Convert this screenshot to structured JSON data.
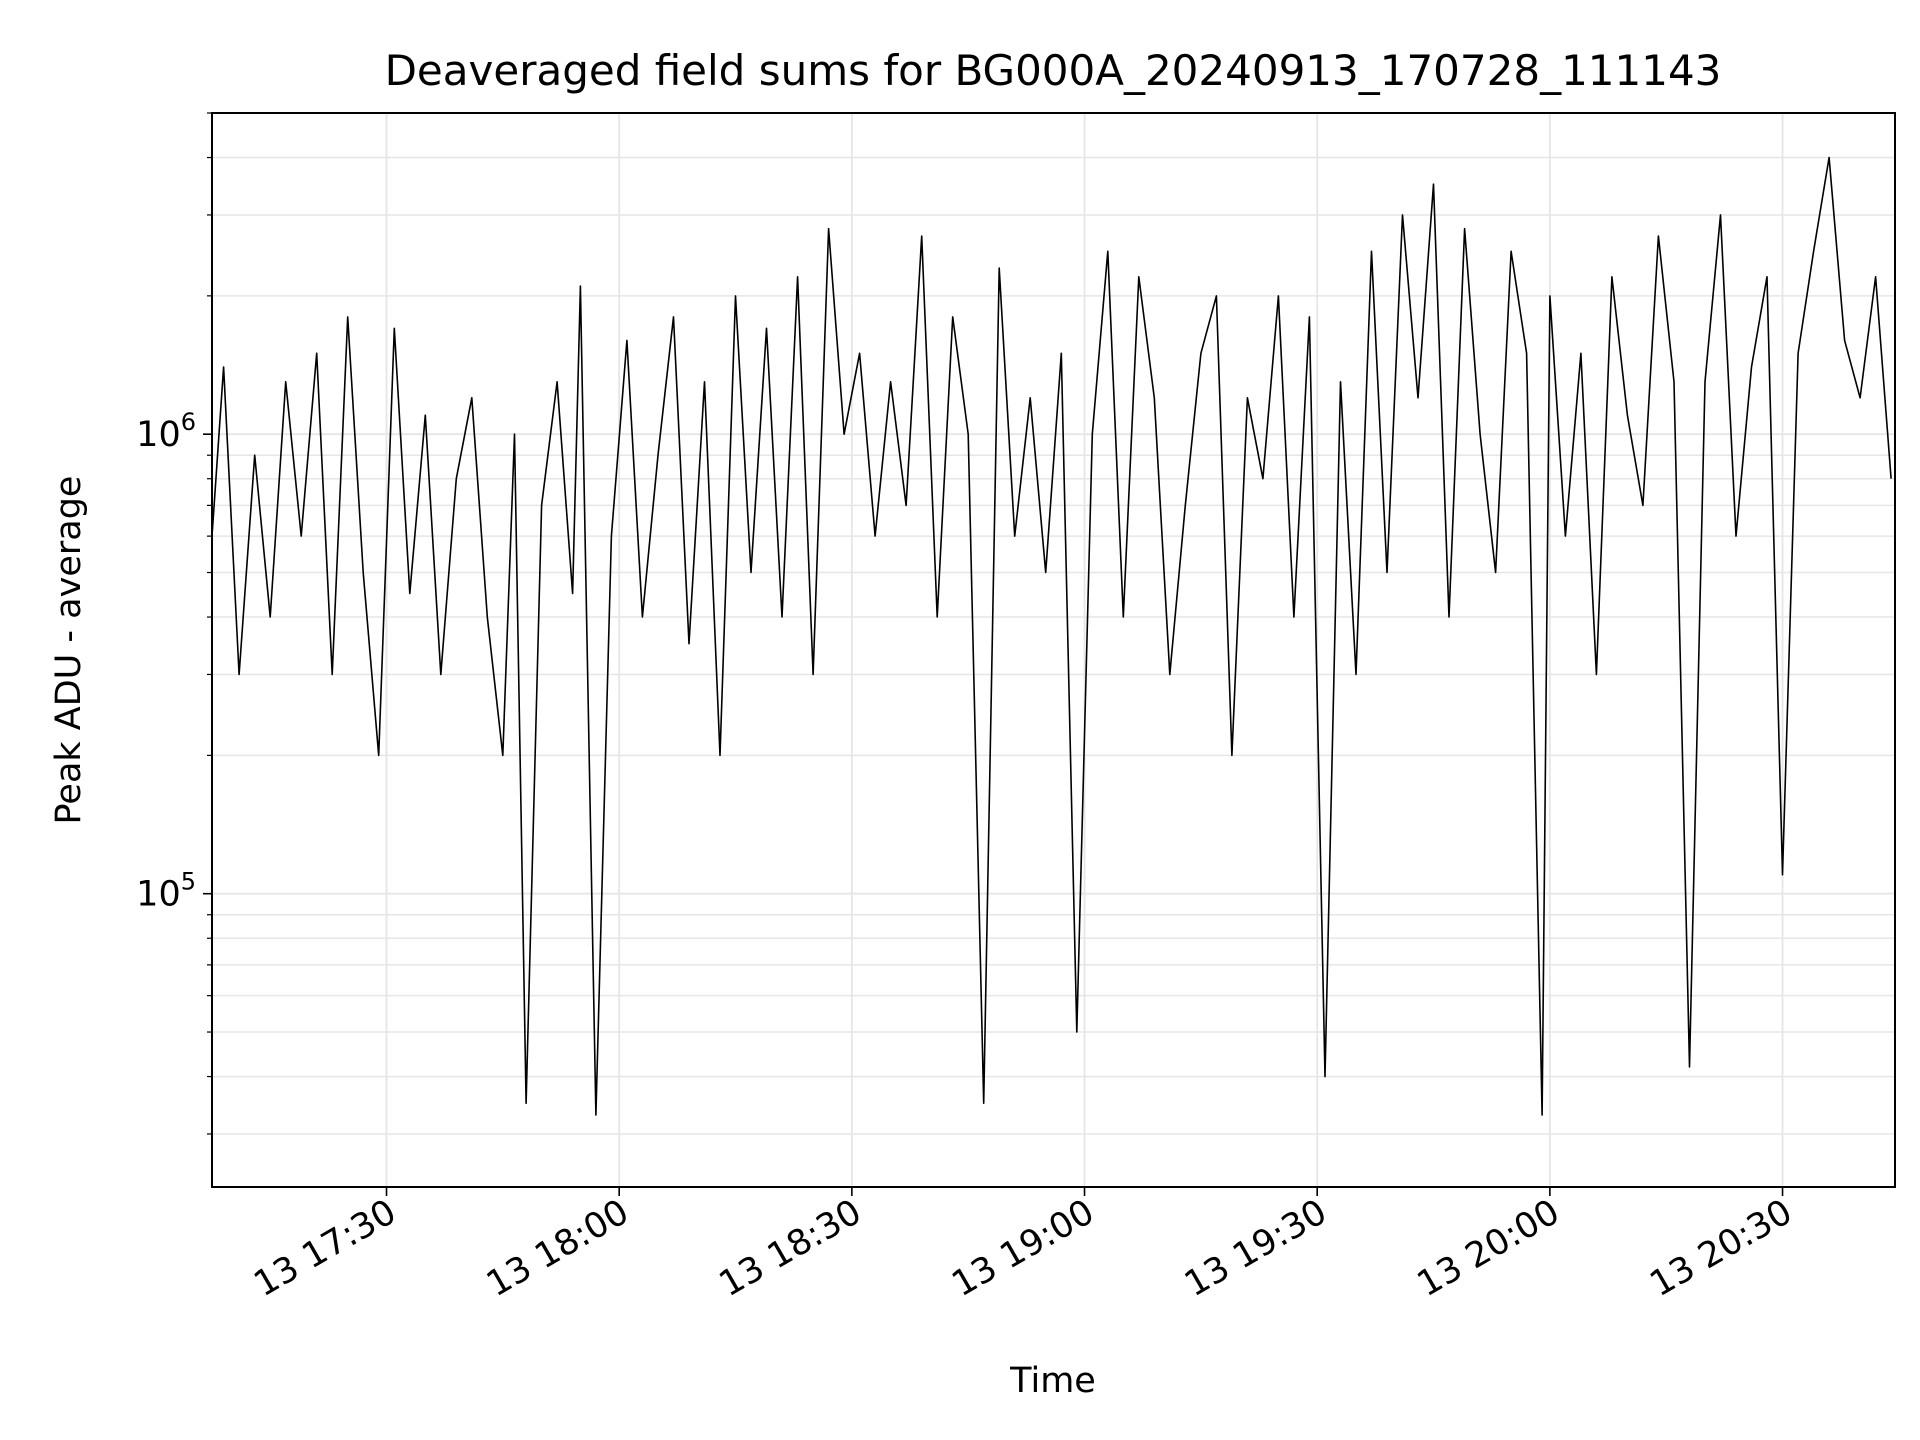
{
  "chart_data": {
    "type": "line",
    "title": "Deaveraged field sums for BG000A_20240913_170728_111143",
    "xlabel": "Time",
    "ylabel": "Peak ADU - average",
    "y_scale": "log",
    "ylim": [
      23000,
      5000000
    ],
    "xlim": [
      "2024-09-13 17:07:30",
      "2024-09-13 20:44:30"
    ],
    "grid": true,
    "legend": "none",
    "line_color": "#000000",
    "x_ticks": [
      {
        "time": "2024-09-13 17:30",
        "label": "13 17:30"
      },
      {
        "time": "2024-09-13 18:00",
        "label": "13 18:00"
      },
      {
        "time": "2024-09-13 18:30",
        "label": "13 18:30"
      },
      {
        "time": "2024-09-13 19:00",
        "label": "13 19:00"
      },
      {
        "time": "2024-09-13 19:30",
        "label": "13 19:30"
      },
      {
        "time": "2024-09-13 20:00",
        "label": "13 20:00"
      },
      {
        "time": "2024-09-13 20:30",
        "label": "13 20:30"
      }
    ],
    "y_ticks": [
      {
        "value": 100000,
        "base": "10",
        "exp": "5"
      },
      {
        "value": 1000000,
        "base": "10",
        "exp": "6"
      }
    ],
    "series": [
      {
        "x": [
          "2024-09-13 17:07:30",
          "2024-09-13 17:09:00",
          "2024-09-13 17:11:00",
          "2024-09-13 17:13:00",
          "2024-09-13 17:15:00",
          "2024-09-13 17:17:00",
          "2024-09-13 17:19:00",
          "2024-09-13 17:21:00",
          "2024-09-13 17:23:00",
          "2024-09-13 17:25:00",
          "2024-09-13 17:27:00",
          "2024-09-13 17:29:00",
          "2024-09-13 17:31:00",
          "2024-09-13 17:33:00",
          "2024-09-13 17:35:00",
          "2024-09-13 17:37:00",
          "2024-09-13 17:39:00",
          "2024-09-13 17:41:00",
          "2024-09-13 17:43:00",
          "2024-09-13 17:45:00",
          "2024-09-13 17:46:30",
          "2024-09-13 17:48:00",
          "2024-09-13 17:50:00",
          "2024-09-13 17:52:00",
          "2024-09-13 17:54:00",
          "2024-09-13 17:55:00",
          "2024-09-13 17:57:00",
          "2024-09-13 17:59:00",
          "2024-09-13 18:01:00",
          "2024-09-13 18:03:00",
          "2024-09-13 18:05:00",
          "2024-09-13 18:07:00",
          "2024-09-13 18:09:00",
          "2024-09-13 18:11:00",
          "2024-09-13 18:13:00",
          "2024-09-13 18:15:00",
          "2024-09-13 18:17:00",
          "2024-09-13 18:19:00",
          "2024-09-13 18:21:00",
          "2024-09-13 18:23:00",
          "2024-09-13 18:25:00",
          "2024-09-13 18:27:00",
          "2024-09-13 18:29:00",
          "2024-09-13 18:31:00",
          "2024-09-13 18:33:00",
          "2024-09-13 18:35:00",
          "2024-09-13 18:37:00",
          "2024-09-13 18:39:00",
          "2024-09-13 18:41:00",
          "2024-09-13 18:43:00",
          "2024-09-13 18:45:00",
          "2024-09-13 18:47:00",
          "2024-09-13 18:49:00",
          "2024-09-13 18:51:00",
          "2024-09-13 18:53:00",
          "2024-09-13 18:55:00",
          "2024-09-13 18:57:00",
          "2024-09-13 18:59:00",
          "2024-09-13 19:01:00",
          "2024-09-13 19:03:00",
          "2024-09-13 19:05:00",
          "2024-09-13 19:07:00",
          "2024-09-13 19:09:00",
          "2024-09-13 19:11:00",
          "2024-09-13 19:13:00",
          "2024-09-13 19:15:00",
          "2024-09-13 19:17:00",
          "2024-09-13 19:19:00",
          "2024-09-13 19:21:00",
          "2024-09-13 19:23:00",
          "2024-09-13 19:25:00",
          "2024-09-13 19:27:00",
          "2024-09-13 19:29:00",
          "2024-09-13 19:31:00",
          "2024-09-13 19:33:00",
          "2024-09-13 19:35:00",
          "2024-09-13 19:37:00",
          "2024-09-13 19:39:00",
          "2024-09-13 19:41:00",
          "2024-09-13 19:43:00",
          "2024-09-13 19:45:00",
          "2024-09-13 19:47:00",
          "2024-09-13 19:49:00",
          "2024-09-13 19:51:00",
          "2024-09-13 19:53:00",
          "2024-09-13 19:55:00",
          "2024-09-13 19:57:00",
          "2024-09-13 19:59:00",
          "2024-09-13 20:00:00",
          "2024-09-13 20:02:00",
          "2024-09-13 20:04:00",
          "2024-09-13 20:06:00",
          "2024-09-13 20:08:00",
          "2024-09-13 20:10:00",
          "2024-09-13 20:12:00",
          "2024-09-13 20:14:00",
          "2024-09-13 20:16:00",
          "2024-09-13 20:18:00",
          "2024-09-13 20:20:00",
          "2024-09-13 20:22:00",
          "2024-09-13 20:24:00",
          "2024-09-13 20:26:00",
          "2024-09-13 20:28:00",
          "2024-09-13 20:30:00",
          "2024-09-13 20:32:00",
          "2024-09-13 20:34:00",
          "2024-09-13 20:36:00",
          "2024-09-13 20:38:00",
          "2024-09-13 20:40:00",
          "2024-09-13 20:42:00",
          "2024-09-13 20:44:00"
        ],
        "y": [
          600000,
          1400000,
          300000,
          900000,
          400000,
          1300000,
          600000,
          1500000,
          300000,
          1800000,
          500000,
          200000,
          1700000,
          450000,
          1100000,
          300000,
          800000,
          1200000,
          400000,
          200000,
          1000000,
          35000,
          700000,
          1300000,
          450000,
          2100000,
          33000,
          600000,
          1600000,
          400000,
          900000,
          1800000,
          350000,
          1300000,
          200000,
          2000000,
          500000,
          1700000,
          400000,
          2200000,
          300000,
          2800000,
          1000000,
          1500000,
          600000,
          1300000,
          700000,
          2700000,
          400000,
          1800000,
          1000000,
          35000,
          2300000,
          600000,
          1200000,
          500000,
          1500000,
          50000,
          1000000,
          2500000,
          400000,
          2200000,
          1200000,
          300000,
          700000,
          1500000,
          2000000,
          200000,
          1200000,
          800000,
          2000000,
          400000,
          1800000,
          40000,
          1300000,
          300000,
          2500000,
          500000,
          3000000,
          1200000,
          3500000,
          400000,
          2800000,
          1000000,
          500000,
          2500000,
          1500000,
          33000,
          2000000,
          600000,
          1500000,
          300000,
          2200000,
          1100000,
          700000,
          2700000,
          1300000,
          42000,
          1300000,
          3000000,
          600000,
          1400000,
          2200000,
          110000,
          1500000,
          2500000,
          4000000,
          1600000,
          1200000,
          2200000,
          800000
        ]
      }
    ]
  }
}
